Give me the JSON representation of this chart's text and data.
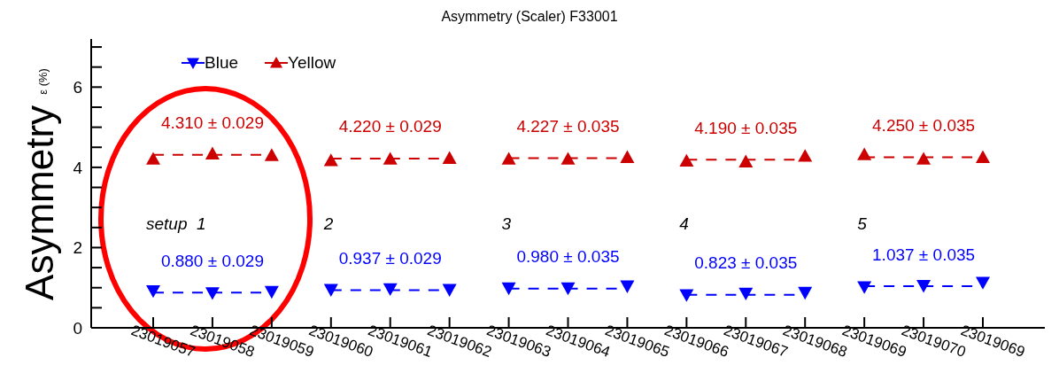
{
  "chart_data": {
    "type": "scatter",
    "title": "Asymmetry (Scaler) F33001",
    "ylabel": "Asymmetry $^{ε (%)}$",
    "categories": [
      "23019057",
      "23019058",
      "23019059",
      "23019060",
      "23019061",
      "23019062",
      "23019063",
      "23019064",
      "23019065",
      "23019066",
      "23019067",
      "23019068",
      "23019069",
      "23019070",
      "23019069"
    ],
    "series": [
      {
        "name": "Blue",
        "type": "scatter",
        "marker": "triangle-down",
        "color": "#0000ff",
        "values": [
          0.92,
          0.87,
          0.9,
          0.95,
          0.97,
          0.95,
          0.99,
          0.99,
          1.04,
          0.82,
          0.86,
          0.88,
          1.02,
          1.05,
          1.13
        ]
      },
      {
        "name": "Yellow",
        "type": "scatter",
        "marker": "triangle",
        "color": "#cc0000",
        "values": [
          4.21,
          4.34,
          4.3,
          4.17,
          4.21,
          4.23,
          4.21,
          4.21,
          4.25,
          4.16,
          4.14,
          4.28,
          4.32,
          4.21,
          4.25
        ]
      },
      {
        "type": "line",
        "line_style": "dashed",
        "color": "#cc0000",
        "values": [
          4.31,
          4.31,
          4.31,
          null,
          null,
          null,
          null,
          null,
          null,
          null,
          null,
          null,
          null,
          null,
          null
        ],
        "value_labels": [
          null,
          "4.310 ± 0.029",
          null,
          null,
          null,
          null,
          null,
          null,
          null,
          null,
          null,
          null,
          null,
          null,
          null
        ]
      },
      {
        "type": "line",
        "line_style": "dashed",
        "color": "#cc0000",
        "values": [
          null,
          null,
          null,
          4.22,
          4.22,
          4.22,
          null,
          null,
          null,
          null,
          null,
          null,
          null,
          null,
          null
        ],
        "value_labels": [
          null,
          null,
          null,
          null,
          "4.220 ± 0.029",
          null,
          null,
          null,
          null,
          null,
          null,
          null,
          null,
          null,
          null
        ]
      },
      {
        "type": "line",
        "line_style": "dashed",
        "color": "#cc0000",
        "values": [
          null,
          null,
          null,
          null,
          null,
          null,
          4.227,
          4.227,
          4.227,
          null,
          null,
          null,
          null,
          null,
          null
        ],
        "value_labels": [
          null,
          null,
          null,
          null,
          null,
          null,
          null,
          "4.227 ± 0.035",
          null,
          null,
          null,
          null,
          null,
          null,
          null
        ]
      },
      {
        "type": "line",
        "line_style": "dashed",
        "color": "#cc0000",
        "values": [
          null,
          null,
          null,
          null,
          null,
          null,
          null,
          null,
          null,
          4.19,
          4.19,
          4.19,
          null,
          null,
          null
        ],
        "value_labels": [
          null,
          null,
          null,
          null,
          null,
          null,
          null,
          null,
          null,
          null,
          "4.190 ± 0.035",
          null,
          null,
          null,
          null
        ]
      },
      {
        "type": "line",
        "line_style": "dashed",
        "color": "#cc0000",
        "values": [
          null,
          null,
          null,
          null,
          null,
          null,
          null,
          null,
          null,
          null,
          null,
          null,
          4.25,
          4.25,
          4.25
        ],
        "value_labels": [
          null,
          null,
          null,
          null,
          null,
          null,
          null,
          null,
          null,
          null,
          null,
          null,
          null,
          "4.250 ± 0.035",
          null
        ]
      },
      {
        "type": "line",
        "line_style": "dashed",
        "color": "#0000ff",
        "values": [
          0.88,
          0.88,
          0.88,
          null,
          null,
          null,
          null,
          null,
          null,
          null,
          null,
          null,
          null,
          null,
          null
        ],
        "value_labels": [
          null,
          "0.880 ± 0.029",
          null,
          null,
          null,
          null,
          null,
          null,
          null,
          null,
          null,
          null,
          null,
          null,
          null
        ]
      },
      {
        "type": "line",
        "line_style": "dashed",
        "color": "#0000ff",
        "values": [
          null,
          null,
          null,
          0.937,
          0.937,
          0.937,
          null,
          null,
          null,
          null,
          null,
          null,
          null,
          null,
          null
        ],
        "value_labels": [
          null,
          null,
          null,
          null,
          "0.937 ± 0.029",
          null,
          null,
          null,
          null,
          null,
          null,
          null,
          null,
          null,
          null
        ]
      },
      {
        "type": "line",
        "line_style": "dashed",
        "color": "#0000ff",
        "values": [
          null,
          null,
          null,
          null,
          null,
          null,
          0.98,
          0.98,
          0.98,
          null,
          null,
          null,
          null,
          null,
          null
        ],
        "value_labels": [
          null,
          null,
          null,
          null,
          null,
          null,
          null,
          "0.980 ± 0.035",
          null,
          null,
          null,
          null,
          null,
          null,
          null
        ]
      },
      {
        "type": "line",
        "line_style": "dashed",
        "color": "#0000ff",
        "values": [
          null,
          null,
          null,
          null,
          null,
          null,
          null,
          null,
          null,
          0.823,
          0.823,
          0.823,
          null,
          null,
          null
        ],
        "value_labels": [
          null,
          null,
          null,
          null,
          null,
          null,
          null,
          null,
          null,
          null,
          "0.823 ± 0.035",
          null,
          null,
          null,
          null
        ]
      },
      {
        "type": "line",
        "line_style": "dashed",
        "color": "#0000ff",
        "values": [
          null,
          null,
          null,
          null,
          null,
          null,
          null,
          null,
          null,
          null,
          null,
          null,
          1.037,
          1.037,
          1.037
        ],
        "value_labels": [
          null,
          null,
          null,
          null,
          null,
          null,
          null,
          null,
          null,
          null,
          null,
          null,
          null,
          "1.037 ± 0.035",
          null
        ]
      }
    ],
    "ylim": [
      0,
      7.2
    ],
    "yticks": [
      0,
      {
        "value": 0.5,
        "label": null
      },
      {
        "value": 1,
        "label": null
      },
      {
        "value": 1.5,
        "label": null
      },
      2,
      {
        "value": 2.5,
        "label": null
      },
      {
        "value": 3,
        "label": null
      },
      {
        "value": 3.5,
        "label": null
      },
      4,
      {
        "value": 4.5,
        "label": null
      },
      {
        "value": 5,
        "label": null
      },
      {
        "value": 5.5,
        "label": null
      },
      6,
      {
        "value": 6.5,
        "label": null
      },
      {
        "value": 7,
        "label": null
      }
    ],
    "legend": "top left",
    "grid": false,
    "annotations": [
      "setup  1",
      "2",
      "3",
      "4",
      "5"
    ]
  }
}
